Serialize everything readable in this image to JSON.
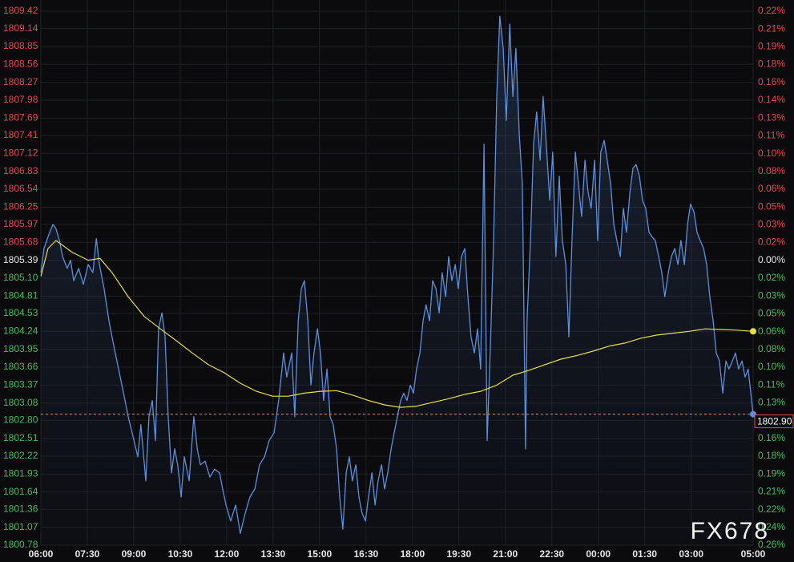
{
  "chart_data": {
    "type": "line",
    "watermark": "FX678",
    "xlim": [
      0,
      23
    ],
    "xticks": [
      {
        "value": 0,
        "label": "06:00"
      },
      {
        "value": 1.5,
        "label": "07:30"
      },
      {
        "value": 3,
        "label": "09:00"
      },
      {
        "value": 4.5,
        "label": "10:30"
      },
      {
        "value": 6,
        "label": "12:00"
      },
      {
        "value": 7.5,
        "label": "13:30"
      },
      {
        "value": 9,
        "label": "15:00"
      },
      {
        "value": 10.5,
        "label": "16:30"
      },
      {
        "value": 12,
        "label": "18:00"
      },
      {
        "value": 13.5,
        "label": "19:30"
      },
      {
        "value": 15,
        "label": "21:00"
      },
      {
        "value": 16.5,
        "label": "22:30"
      },
      {
        "value": 18,
        "label": "00:00"
      },
      {
        "value": 19.5,
        "label": "01:30"
      },
      {
        "value": 21,
        "label": "03:00"
      },
      {
        "value": 23,
        "label": "05:00"
      }
    ],
    "ylim": [
      1800.78,
      1809.42
    ],
    "yticks": [
      1809.42,
      1809.14,
      1808.85,
      1808.56,
      1808.27,
      1807.98,
      1807.69,
      1807.41,
      1807.12,
      1806.83,
      1806.54,
      1806.25,
      1805.97,
      1805.68,
      1805.39,
      1805.1,
      1804.81,
      1804.53,
      1804.24,
      1803.95,
      1803.66,
      1803.37,
      1803.08,
      1802.8,
      1802.51,
      1802.22,
      1801.93,
      1801.64,
      1801.36,
      1801.07,
      1800.78
    ],
    "ytick_labels": [
      "1809.42",
      "1809.14",
      "1808.85",
      "1808.56",
      "1808.27",
      "1807.98",
      "1807.69",
      "1807.41",
      "1807.12",
      "1806.83",
      "1806.54",
      "1806.25",
      "1805.97",
      "1805.68",
      "1805.39",
      "1805.10",
      "1804.81",
      "1804.53",
      "1804.24",
      "1803.95",
      "1803.66",
      "1803.37",
      "1803.08",
      "1802.80",
      "1802.51",
      "1802.22",
      "1801.93",
      "1801.64",
      "1801.36",
      "1801.07",
      "1800.78"
    ],
    "y2lim": [
      -0.2552,
      0.2233
    ],
    "y2ticks": [
      {
        "value": 0.2233,
        "label": "0.22%"
      },
      {
        "value": 0.2074,
        "label": "0.21%"
      },
      {
        "value": 0.1914,
        "label": "0.19%"
      },
      {
        "value": 0.1755,
        "label": "0.18%"
      },
      {
        "value": 0.1595,
        "label": "0.16%"
      },
      {
        "value": 0.1436,
        "label": "0.14%"
      },
      {
        "value": 0.1276,
        "label": "0.13%"
      },
      {
        "value": 0.1117,
        "label": "0.11%"
      },
      {
        "value": 0.0957,
        "label": "0.10%"
      },
      {
        "value": 0.0798,
        "label": "0.08%"
      },
      {
        "value": 0.0638,
        "label": "0.06%"
      },
      {
        "value": 0.0479,
        "label": "0.05%"
      },
      {
        "value": 0.0319,
        "label": "0.03%"
      },
      {
        "value": 0.016,
        "label": "0.02%"
      },
      {
        "value": 0,
        "label": "0.00%"
      },
      {
        "value": -0.016,
        "label": "0.02%"
      },
      {
        "value": -0.0319,
        "label": "0.03%"
      },
      {
        "value": -0.0479,
        "label": "0.05%"
      },
      {
        "value": -0.0638,
        "label": "0.06%"
      },
      {
        "value": -0.0798,
        "label": "0.08%"
      },
      {
        "value": -0.0957,
        "label": "0.10%"
      },
      {
        "value": -0.1117,
        "label": "0.11%"
      },
      {
        "value": -0.1276,
        "label": "0.13%"
      },
      {
        "value": -0.1595,
        "label": "0.16%"
      },
      {
        "value": -0.1755,
        "label": "0.18%"
      },
      {
        "value": -0.1914,
        "label": "0.19%"
      },
      {
        "value": -0.2074,
        "label": "0.21%"
      },
      {
        "value": -0.2233,
        "label": "0.22%"
      },
      {
        "value": -0.2393,
        "label": "0.24%"
      },
      {
        "value": -0.2552,
        "label": "0.26%"
      }
    ],
    "up_color": "#e8474f",
    "down_color": "#3fbf5f",
    "flat_color": "#e6e6e6",
    "grid": true,
    "last_price": {
      "value": 1802.9,
      "label": "1802.90"
    },
    "series": [
      {
        "color": "#5c8fdc",
        "x": [
          0,
          0.1,
          0.23,
          0.39,
          0.49,
          0.6,
          0.7,
          0.85,
          0.96,
          1.06,
          1.22,
          1.37,
          1.53,
          1.68,
          1.79,
          1.89,
          2.04,
          2.2,
          2.35,
          2.51,
          2.67,
          2.82,
          2.98,
          3.13,
          3.23,
          3.39,
          3.49,
          3.6,
          3.7,
          3.8,
          3.91,
          4.01,
          4.11,
          4.22,
          4.32,
          4.42,
          4.53,
          4.63,
          4.79,
          4.94,
          5.05,
          5.15,
          5.3,
          5.46,
          5.61,
          5.77,
          5.87,
          5.98,
          6.13,
          6.29,
          6.44,
          6.6,
          6.75,
          6.91,
          7.06,
          7.22,
          7.37,
          7.53,
          7.68,
          7.84,
          7.94,
          8.1,
          8.2,
          8.31,
          8.41,
          8.51,
          8.62,
          8.72,
          8.82,
          8.93,
          9.03,
          9.13,
          9.24,
          9.34,
          9.44,
          9.55,
          9.65,
          9.75,
          9.86,
          9.96,
          10.06,
          10.17,
          10.27,
          10.37,
          10.48,
          10.58,
          10.69,
          10.79,
          10.89,
          11.0,
          11.1,
          11.2,
          11.31,
          11.41,
          11.51,
          11.62,
          11.72,
          11.82,
          11.93,
          12.03,
          12.13,
          12.24,
          12.34,
          12.44,
          12.55,
          12.65,
          12.76,
          12.86,
          12.96,
          13.07,
          13.17,
          13.27,
          13.38,
          13.48,
          13.58,
          13.69,
          13.79,
          13.89,
          14.0,
          14.1,
          14.2,
          14.31,
          14.41,
          14.51,
          14.62,
          14.72,
          14.82,
          14.93,
          15.03,
          15.14,
          15.24,
          15.34,
          15.45,
          15.55,
          15.65,
          15.7,
          15.81,
          15.91,
          16.01,
          16.12,
          16.22,
          16.32,
          16.43,
          16.53,
          16.63,
          16.74,
          16.84,
          16.95,
          17.05,
          17.15,
          17.26,
          17.36,
          17.46,
          17.57,
          17.67,
          17.77,
          17.88,
          17.98,
          18.08,
          18.19,
          18.29,
          18.4,
          18.5,
          18.6,
          18.71,
          18.81,
          18.91,
          19.02,
          19.12,
          19.22,
          19.33,
          19.43,
          19.53,
          19.64,
          19.74,
          19.84,
          19.95,
          20.05,
          20.15,
          20.26,
          20.36,
          20.47,
          20.57,
          20.67,
          20.78,
          20.88,
          20.98,
          21.09,
          21.19,
          21.29,
          21.4,
          21.5,
          21.6,
          21.71,
          21.81,
          21.91,
          22.02,
          22.12,
          22.22,
          22.33,
          22.43,
          22.53,
          22.64,
          22.74,
          22.84,
          22.95,
          23.0
        ],
        "values": [
          1805.19,
          1805.58,
          1805.77,
          1805.97,
          1805.9,
          1805.71,
          1805.45,
          1805.26,
          1805.39,
          1805.06,
          1805.26,
          1805.0,
          1805.32,
          1805.19,
          1805.74,
          1805.32,
          1804.93,
          1804.41,
          1804.02,
          1803.63,
          1803.24,
          1802.86,
          1802.53,
          1802.21,
          1802.73,
          1801.82,
          1802.86,
          1803.12,
          1802.47,
          1804.28,
          1804.54,
          1804.15,
          1802.86,
          1801.95,
          1802.34,
          1802.08,
          1801.56,
          1802.21,
          1801.82,
          1802.86,
          1802.34,
          1802.08,
          1802.14,
          1801.88,
          1802.01,
          1801.95,
          1801.69,
          1801.43,
          1801.17,
          1801.43,
          1800.97,
          1801.3,
          1801.56,
          1801.69,
          1802.08,
          1802.21,
          1802.47,
          1802.6,
          1803.12,
          1803.89,
          1803.5,
          1803.89,
          1802.86,
          1804.41,
          1804.93,
          1805.06,
          1804.41,
          1803.37,
          1803.89,
          1804.28,
          1803.89,
          1803.12,
          1803.63,
          1802.86,
          1802.73,
          1802.34,
          1801.56,
          1801.04,
          1801.95,
          1802.21,
          1801.82,
          1802.08,
          1801.56,
          1801.3,
          1801.17,
          1801.56,
          1801.95,
          1801.43,
          1801.82,
          1802.08,
          1801.69,
          1801.95,
          1802.34,
          1802.6,
          1802.86,
          1803.12,
          1803.24,
          1803.12,
          1803.37,
          1803.24,
          1803.63,
          1803.89,
          1804.41,
          1804.67,
          1804.41,
          1805.06,
          1804.93,
          1804.54,
          1805.19,
          1804.8,
          1805.45,
          1805.06,
          1805.32,
          1804.93,
          1805.45,
          1805.58,
          1804.8,
          1804.15,
          1803.89,
          1804.28,
          1803.63,
          1807.27,
          1802.47,
          1803.89,
          1805.71,
          1808.04,
          1809.34,
          1808.82,
          1807.65,
          1809.21,
          1808.04,
          1808.82,
          1807.4,
          1806.62,
          1802.34,
          1804.41,
          1805.71,
          1807.27,
          1807.79,
          1807.01,
          1808.04,
          1807.27,
          1806.36,
          1807.14,
          1805.45,
          1806.75,
          1805.71,
          1805.32,
          1804.15,
          1805.71,
          1807.14,
          1806.62,
          1806.1,
          1807.01,
          1806.49,
          1806.23,
          1807.01,
          1805.71,
          1807.14,
          1807.33,
          1807.01,
          1806.62,
          1805.97,
          1805.71,
          1805.45,
          1806.23,
          1805.84,
          1806.49,
          1806.88,
          1806.94,
          1806.75,
          1806.36,
          1806.23,
          1805.84,
          1805.77,
          1805.71,
          1805.45,
          1805.19,
          1804.8,
          1805.19,
          1805.45,
          1805.58,
          1805.32,
          1805.71,
          1805.32,
          1805.97,
          1806.3,
          1806.17,
          1805.84,
          1805.71,
          1805.58,
          1805.32,
          1804.8,
          1804.41,
          1803.89,
          1803.76,
          1803.24,
          1803.76,
          1803.63,
          1803.76,
          1803.89,
          1803.63,
          1803.76,
          1803.5,
          1803.63,
          1803.12,
          1802.9
        ]
      },
      {
        "color": "#e6df4c",
        "x": [
          0,
          0.23,
          0.49,
          1.01,
          1.53,
          1.91,
          2.3,
          2.82,
          3.34,
          3.86,
          4.37,
          4.89,
          5.41,
          5.92,
          6.44,
          6.96,
          7.48,
          7.99,
          8.51,
          9.03,
          9.55,
          10.06,
          10.58,
          11.1,
          11.62,
          12.13,
          12.65,
          13.17,
          13.69,
          14.2,
          14.72,
          15.24,
          15.76,
          16.27,
          16.79,
          17.31,
          17.83,
          18.34,
          18.86,
          19.38,
          19.9,
          20.41,
          20.93,
          21.45,
          21.97,
          22.48,
          23.0
        ],
        "values": [
          1805.13,
          1805.58,
          1805.71,
          1805.52,
          1805.39,
          1805.42,
          1805.19,
          1804.8,
          1804.48,
          1804.28,
          1804.09,
          1803.89,
          1803.7,
          1803.57,
          1803.4,
          1803.27,
          1803.19,
          1803.19,
          1803.24,
          1803.27,
          1803.28,
          1803.21,
          1803.12,
          1803.05,
          1803.01,
          1803.03,
          1803.09,
          1803.15,
          1803.22,
          1803.27,
          1803.37,
          1803.53,
          1803.61,
          1803.7,
          1803.79,
          1803.85,
          1803.92,
          1804.0,
          1804.05,
          1804.13,
          1804.18,
          1804.21,
          1804.24,
          1804.28,
          1804.27,
          1804.26,
          1804.24
        ]
      }
    ]
  }
}
